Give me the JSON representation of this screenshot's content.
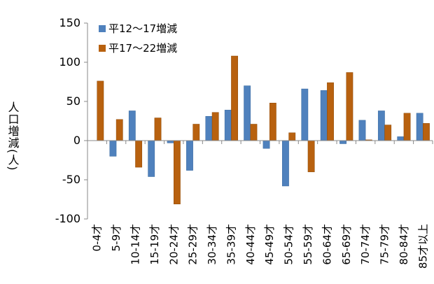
{
  "chart_data": {
    "type": "bar",
    "y_label": "人口増減(人)",
    "categories": [
      "0-4才",
      "5-9才",
      "10-14才",
      "15-19才",
      "20-24才",
      "25-29才",
      "30-34才",
      "35-39才",
      "40-44才",
      "45-49才",
      "50-54才",
      "55-59才",
      "60-64才",
      "65-69才",
      "70-74才",
      "75-79才",
      "80-84才",
      "85才以上"
    ],
    "series": [
      {
        "name": "平12～17増減",
        "color": "#4f81bd",
        "values": [
          0,
          -20,
          38,
          -46,
          -3,
          -38,
          31,
          39,
          70,
          -10,
          -58,
          66,
          64,
          -4,
          26,
          38,
          5,
          35
        ]
      },
      {
        "name": "平17～22増減",
        "color": "#b8610f",
        "values": [
          76,
          27,
          -34,
          29,
          -81,
          21,
          36,
          108,
          21,
          48,
          10,
          -40,
          74,
          87,
          1,
          20,
          35,
          22
        ]
      }
    ],
    "ylim": [
      -100,
      150
    ],
    "yticks": [
      -100,
      -50,
      0,
      50,
      100,
      150
    ],
    "legend": "top-left",
    "grid": false
  }
}
